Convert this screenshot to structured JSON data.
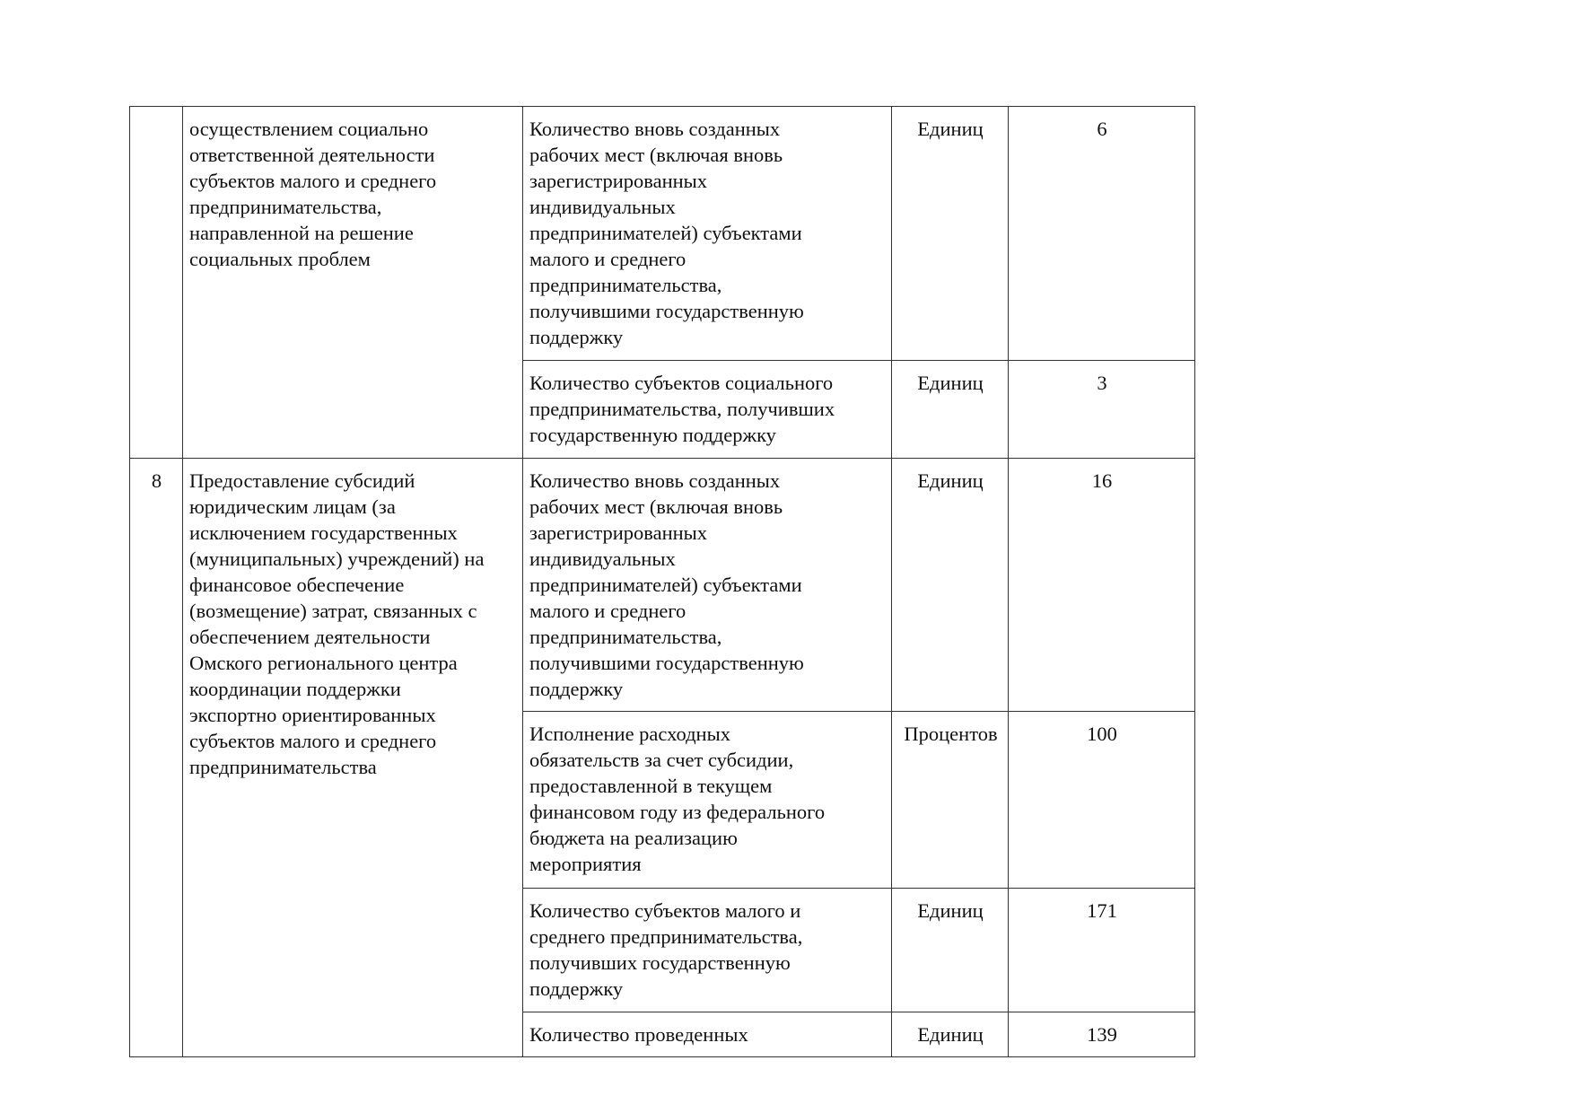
{
  "rows": [
    {
      "num": "",
      "activity": "осуществлением социально\nответственной деятельности\nсубъектов малого и среднего\nпредпринимательства,\nнаправленной на решение\nсоциальных проблем",
      "indicators": [
        {
          "name": "Количество вновь созданных\nрабочих мест (включая вновь\nзарегистрированных\nиндивидуальных\nпредпринимателей) субъектами\nмалого и среднего\nпредпринимательства,\nполучившими государственную\nподдержку",
          "unit": "Единиц",
          "value": "6"
        },
        {
          "name": "Количество субъектов социального\nпредпринимательства, получивших\nгосударственную поддержку",
          "unit": "Единиц",
          "value": "3"
        }
      ]
    },
    {
      "num": "8",
      "activity": "Предоставление субсидий\nюридическим лицам (за\nисключением государственных\n(муниципальных) учреждений) на\nфинансовое обеспечение\n(возмещение) затрат, связанных с\nобеспечением деятельности\nОмского регионального центра\nкоординации поддержки\nэкспортно ориентированных\nсубъектов малого и среднего\nпредпринимательства",
      "indicators": [
        {
          "name": "Количество вновь созданных\nрабочих мест (включая вновь\nзарегистрированных\nиндивидуальных\nпредпринимателей) субъектами\nмалого и среднего\nпредпринимательства,\nполучившими государственную\nподдержку",
          "unit": "Единиц",
          "value": "16"
        },
        {
          "name": "Исполнение расходных\nобязательств за счет субсидии,\nпредоставленной в текущем\nфинансовом году из федерального\nбюджета на реализацию\nмероприятия",
          "unit": "Процентов",
          "value": "100"
        },
        {
          "name": "Количество субъектов малого и\nсреднего предпринимательства,\nполучивших государственную\nподдержку",
          "unit": "Единиц",
          "value": "171"
        },
        {
          "name": "Количество проведенных",
          "unit": "Единиц",
          "value": "139"
        }
      ]
    }
  ]
}
